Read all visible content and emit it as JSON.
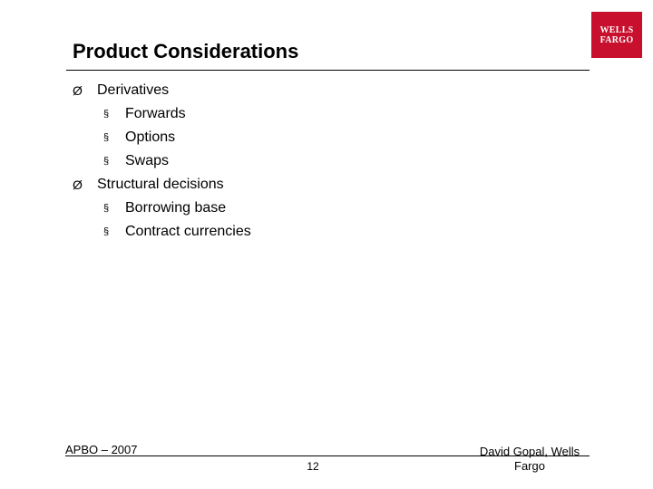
{
  "slide": {
    "title": "Product Considerations",
    "logo": {
      "line1": "WELLS",
      "line2": "FARGO",
      "color": "#c8102e"
    },
    "bullets": [
      {
        "level": 1,
        "marker": "Ø",
        "text": "Derivatives"
      },
      {
        "level": 2,
        "marker": "§",
        "text": "Forwards"
      },
      {
        "level": 2,
        "marker": "§",
        "text": "Options"
      },
      {
        "level": 2,
        "marker": "§",
        "text": "Swaps"
      },
      {
        "level": 1,
        "marker": "Ø",
        "text": "Structural decisions"
      },
      {
        "level": 2,
        "marker": "§",
        "text": "Borrowing base"
      },
      {
        "level": 2,
        "marker": "§",
        "text": "Contract currencies"
      }
    ],
    "footer": {
      "left": "APBO – 2007",
      "page_number": "12",
      "right_line1": "David Gopal, Wells",
      "right_line2": "Fargo"
    }
  }
}
